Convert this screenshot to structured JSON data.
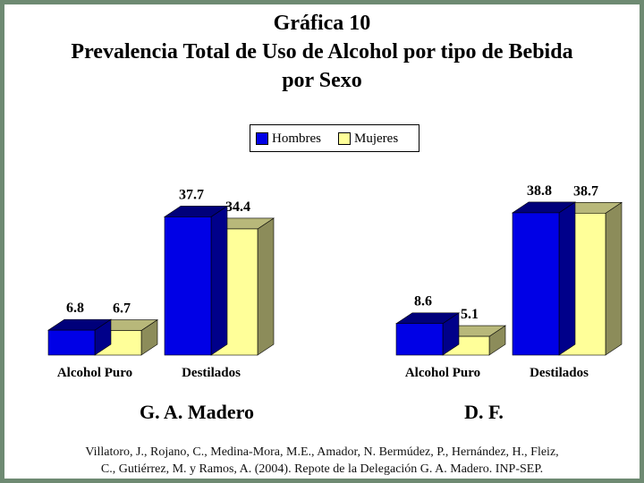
{
  "title": {
    "line1": "Gráfica 10",
    "line2": "Prevalencia Total de Uso de Alcohol por tipo de Bebida",
    "line3": "por Sexo"
  },
  "legend": {
    "hombres": "Hombres",
    "mujeres": "Mujeres"
  },
  "colors": {
    "hombres_front": "#0000e6",
    "hombres_top": "#00007a",
    "hombres_side": "#00008a",
    "mujeres_front": "#ffff99",
    "mujeres_top": "#b8b87a",
    "mujeres_side": "#8c8c5a",
    "frame": "#6e8a72"
  },
  "chart_data": [
    {
      "type": "bar",
      "title": "G. A. Madero",
      "categories": [
        "Alcohol Puro",
        "Destilados"
      ],
      "series": [
        {
          "name": "Hombres",
          "values": [
            6.8,
            37.7
          ]
        },
        {
          "name": "Mujeres",
          "values": [
            6.7,
            34.4
          ]
        }
      ],
      "value_labels": [
        [
          "6.8",
          "37.7"
        ],
        [
          "6.7",
          "34.4"
        ]
      ]
    },
    {
      "type": "bar",
      "title": "D. F.",
      "categories": [
        "Alcohol Puro",
        "Destilados"
      ],
      "series": [
        {
          "name": "Hombres",
          "values": [
            8.6,
            38.8
          ]
        },
        {
          "name": "Mujeres",
          "values": [
            5.1,
            38.7
          ]
        }
      ],
      "value_labels": [
        [
          "8.6",
          "38.8"
        ],
        [
          "5.1",
          "38.7"
        ]
      ]
    }
  ],
  "citation": {
    "line1": "Villatoro, J., Rojano, C., Medina-Mora, M.E., Amador, N. Bermúdez, P., Hernández, H., Fleiz,",
    "line2": "C., Gutiérrez, M. y Ramos, A. (2004). Repote de la Delegación G. A. Madero. INP-SEP."
  }
}
